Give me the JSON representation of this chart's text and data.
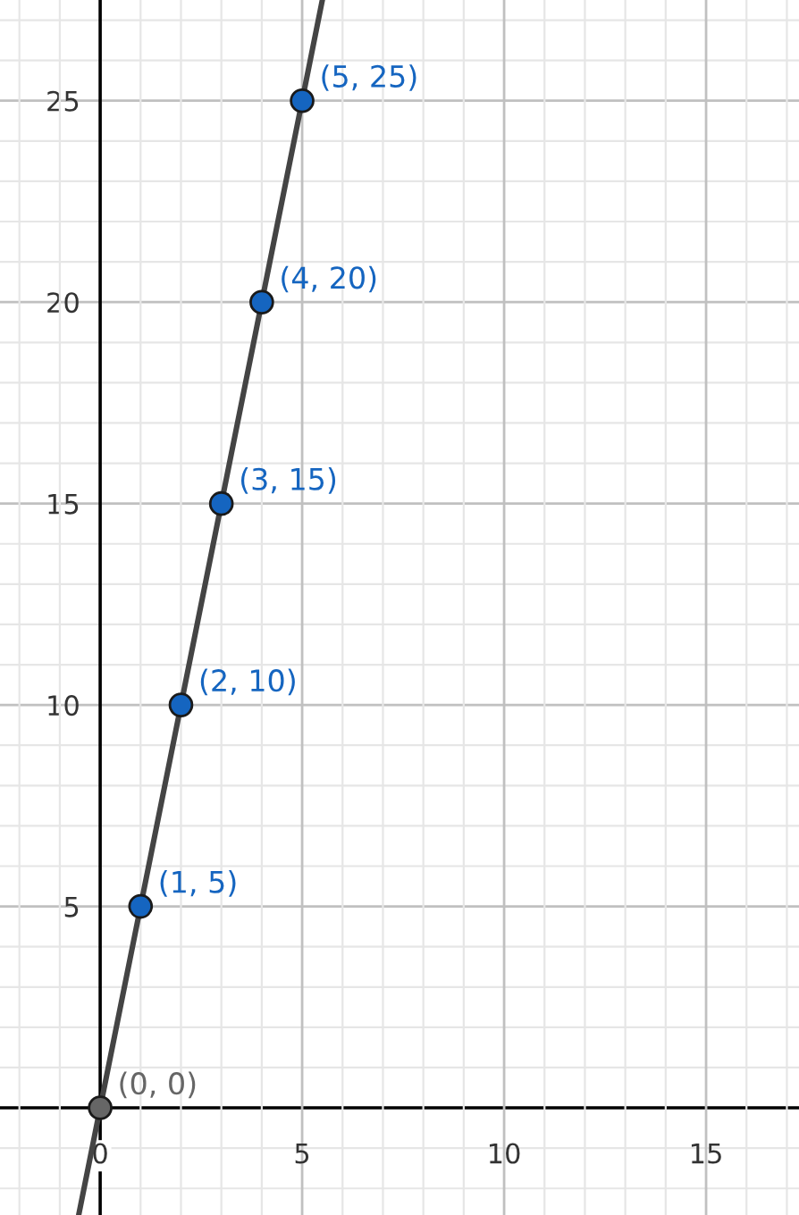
{
  "chart_data": {
    "type": "scatter",
    "series": [
      {
        "type": "line",
        "x": [
          -0.53,
          5.5
        ],
        "values": [
          -2.65,
          27.5
        ],
        "color": "#444444",
        "marker": "none",
        "line_style": "solid"
      },
      {
        "x": [
          0,
          1,
          2,
          3,
          4,
          5
        ],
        "values": [
          0,
          5,
          10,
          15,
          20,
          25
        ],
        "colors": [
          "#666666",
          "#1565c0",
          "#1565c0",
          "#1565c0",
          "#1565c0",
          "#1565c0"
        ],
        "marker": "circle"
      }
    ],
    "annotations": [
      {
        "text": "(0, 0)",
        "x": 0,
        "y": 0
      },
      {
        "text": "(1, 5)",
        "x": 1,
        "y": 5
      },
      {
        "text": "(2, 10)",
        "x": 2,
        "y": 10
      },
      {
        "text": "(3, 15)",
        "x": 3,
        "y": 15
      },
      {
        "text": "(4, 20)",
        "x": 4,
        "y": 20
      },
      {
        "text": "(5, 25)",
        "x": 5,
        "y": 25
      }
    ],
    "xlim": [
      -2.48,
      17.3
    ],
    "ylim": [
      -2.66,
      27.5
    ],
    "xticks": [
      0,
      5,
      10,
      15
    ],
    "yticks": [
      5,
      10,
      15,
      20,
      25
    ],
    "grid": true,
    "legend": false
  }
}
